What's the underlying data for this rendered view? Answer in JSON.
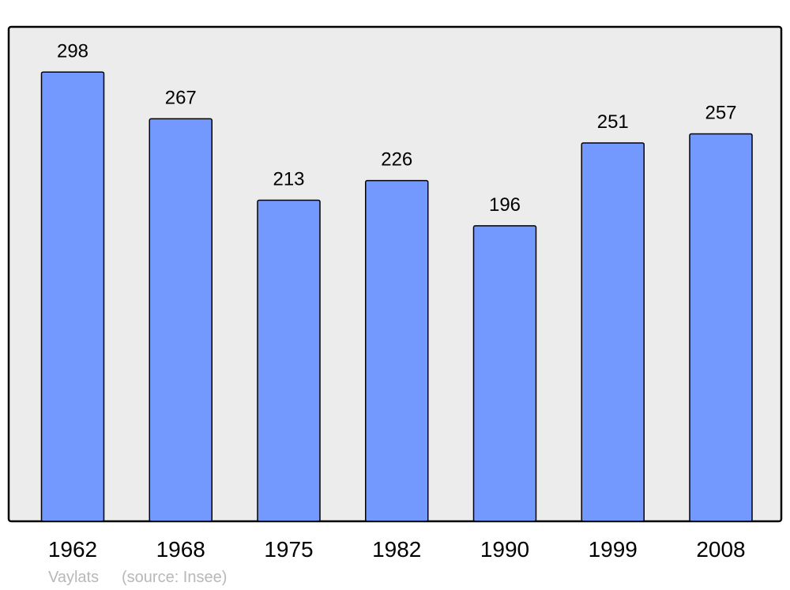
{
  "chart_data": {
    "type": "bar",
    "categories": [
      "1962",
      "1968",
      "1975",
      "1982",
      "1990",
      "1999",
      "2008"
    ],
    "values": [
      298,
      267,
      213,
      226,
      196,
      251,
      257
    ],
    "title": "",
    "xlabel": "",
    "ylabel": "",
    "ylim": [
      0,
      328
    ],
    "grid": false,
    "data_labels": true,
    "colors": {
      "bar": "#7399ff",
      "plot_background": "#ececec",
      "outline": "#000000",
      "footer_text": "#b8b8b8"
    }
  },
  "footer": {
    "place": "Vaylats",
    "source": "(source: Insee)"
  }
}
